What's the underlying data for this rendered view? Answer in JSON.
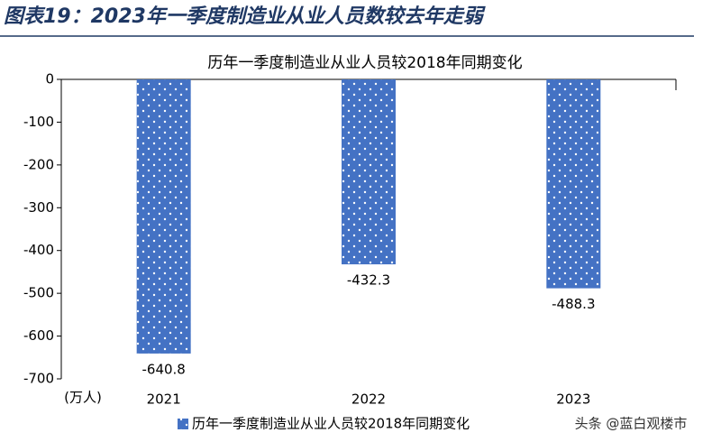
{
  "header": {
    "title": "图表19：2023年一季度制造业从业人员数较去年走弱"
  },
  "chart_data": {
    "type": "bar",
    "title": "历年一季度制造业从业人员较2018年同期变化",
    "y_unit": "(万人)",
    "categories": [
      "2021",
      "2022",
      "2023"
    ],
    "series": [
      {
        "name": "历年一季度制造业从业人员较2018年同期变化",
        "color": "#4472c4",
        "values": [
          -640.8,
          -432.3,
          -488.3
        ]
      }
    ],
    "ylim": [
      -700,
      0
    ],
    "yticks": [
      0,
      -100,
      -200,
      -300,
      -400,
      -500,
      -600,
      -700
    ],
    "grid": false,
    "legend": "bottom"
  },
  "watermark": "头条 @蓝白观楼市"
}
